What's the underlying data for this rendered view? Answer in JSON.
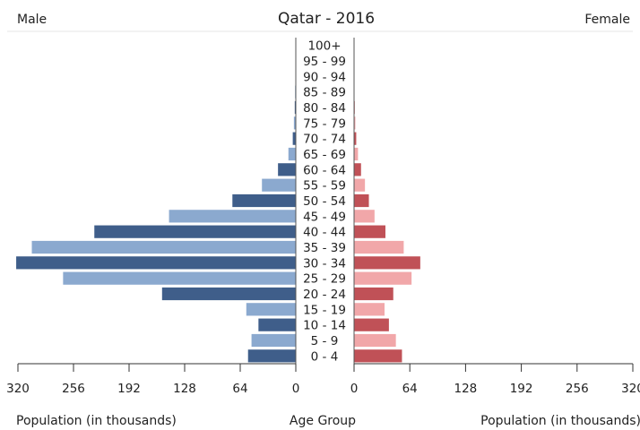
{
  "chart_data": {
    "type": "bar",
    "subtype": "population-pyramid",
    "title": "Qatar - 2016",
    "left_label": "Male",
    "right_label": "Female",
    "xlabel_left": "Population (in thousands)",
    "xlabel_center": "Age Group",
    "xlabel_right": "Population (in thousands)",
    "xlim": [
      0,
      320
    ],
    "xticks": [
      0,
      64,
      128,
      192,
      256,
      320
    ],
    "grid": false,
    "categories": [
      "100+",
      "95 - 99",
      "90 - 94",
      "85 - 89",
      "80 - 84",
      "75 - 79",
      "70 - 74",
      "65 - 69",
      "60 - 64",
      "55 - 59",
      "50 - 54",
      "45 - 49",
      "40 - 44",
      "35 - 39",
      "30 - 34",
      "25 - 29",
      "20 - 24",
      "15 - 19",
      "10 - 14",
      "5 - 9",
      "0 - 4"
    ],
    "series": [
      {
        "side": "left",
        "colors": [
          "#3f5e8a",
          "#8ba9cf"
        ],
        "values": [
          0.1,
          0.2,
          0.4,
          0.8,
          1.2,
          2.2,
          3.5,
          8.5,
          20.5,
          39,
          73,
          146,
          232,
          304,
          322,
          268,
          154,
          57,
          43,
          51,
          55
        ]
      },
      {
        "side": "right",
        "colors": [
          "#c05157",
          "#f1a7a9"
        ],
        "values": [
          0.1,
          0.1,
          0.3,
          0.5,
          0.8,
          1.5,
          2.5,
          4.5,
          8,
          12.5,
          17,
          23.5,
          36,
          57,
          76,
          66,
          45,
          35,
          40,
          48,
          55
        ]
      }
    ]
  }
}
